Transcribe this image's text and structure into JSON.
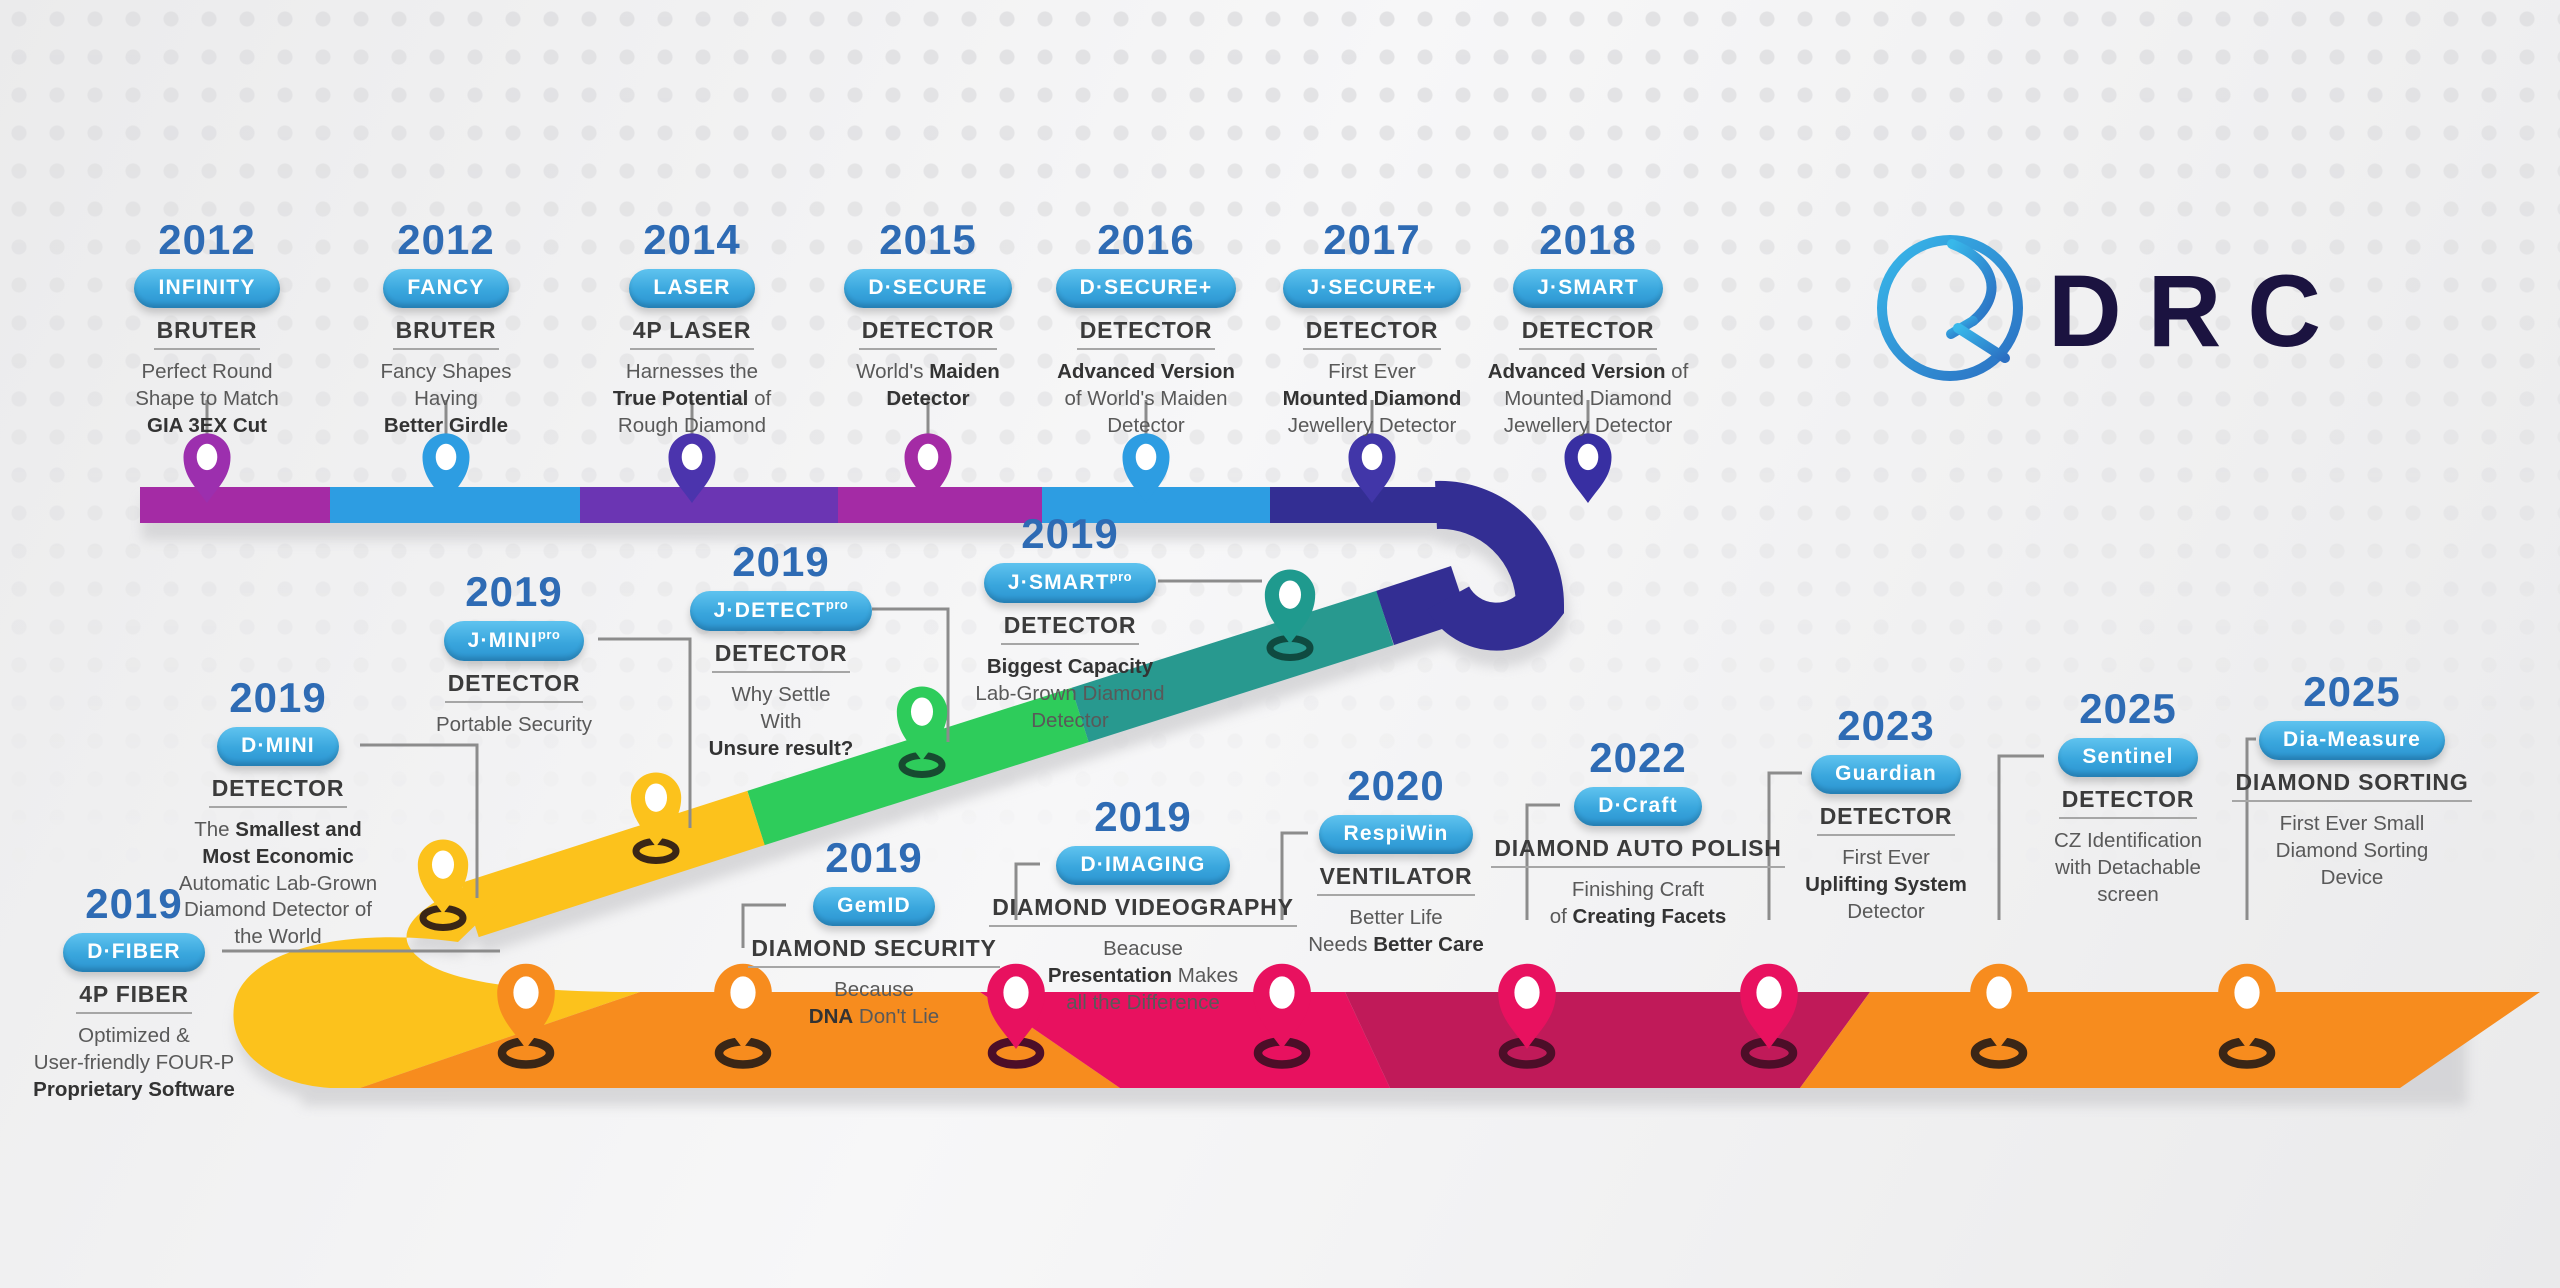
{
  "logo": {
    "text": "DRC"
  },
  "colors": {
    "year_blue": "#2e6bb4",
    "magenta": "#a42ba5",
    "purple": "#9c2fae",
    "blue": "#2d9de2",
    "violet": "#6b35b3",
    "indigo": "#332e93",
    "indigo_pin": "#4136a8",
    "teal": "#28998f",
    "teal_pin": "#1f9a8e",
    "green": "#2ecc5b",
    "yellow": "#fcc21c",
    "orange": "#f78c1e",
    "pink": "#e8115f",
    "crimson": "#c01a59",
    "ring_brown": "#3a2616",
    "ring_maroon": "#4c0e28",
    "connector_gray": "#8c8c8c",
    "logo_navy": "#1b1340"
  },
  "entries": [
    {
      "year": "2012",
      "pill": "INFINITY",
      "pill_sup": "",
      "sublabel": "BRUTER",
      "desc": [
        [
          [
            "Perfect Round",
            false
          ]
        ],
        [
          [
            "Shape to Match",
            false
          ]
        ],
        [
          [
            "GIA 3EX Cut",
            true
          ]
        ]
      ]
    },
    {
      "year": "2012",
      "pill": "FANCY",
      "pill_sup": "",
      "sublabel": "BRUTER",
      "desc": [
        [
          [
            "Fancy Shapes",
            false
          ]
        ],
        [
          [
            "Having",
            false
          ]
        ],
        [
          [
            "Better Girdle",
            true
          ]
        ]
      ]
    },
    {
      "year": "2014",
      "pill": "LASER",
      "pill_sup": "",
      "sublabel": "4P LASER",
      "desc": [
        [
          [
            "Harnesses the",
            false
          ]
        ],
        [
          [
            "True Potential",
            true
          ],
          [
            " of",
            false
          ]
        ],
        [
          [
            "Rough Diamond",
            false
          ]
        ]
      ]
    },
    {
      "year": "2015",
      "pill": "D·SECURE",
      "pill_sup": "",
      "sublabel": "DETECTOR",
      "desc": [
        [
          [
            "World's ",
            false
          ],
          [
            "Maiden",
            true
          ]
        ],
        [
          [
            "Detector",
            true
          ]
        ]
      ]
    },
    {
      "year": "2016",
      "pill": "D·SECURE+",
      "pill_sup": "",
      "sublabel": "DETECTOR",
      "desc": [
        [
          [
            "Advanced Version",
            true
          ]
        ],
        [
          [
            "of World's Maiden",
            false
          ]
        ],
        [
          [
            "Detector",
            false
          ]
        ]
      ]
    },
    {
      "year": "2017",
      "pill": "J·SECURE+",
      "pill_sup": "",
      "sublabel": "DETECTOR",
      "desc": [
        [
          [
            "First Ever",
            false
          ]
        ],
        [
          [
            "Mounted Diamond",
            true
          ]
        ],
        [
          [
            "Jewellery Detector",
            false
          ]
        ]
      ]
    },
    {
      "year": "2018",
      "pill": "J·SMART",
      "pill_sup": "",
      "sublabel": "DETECTOR",
      "desc": [
        [
          [
            "Advanced Version",
            true
          ],
          [
            " of",
            false
          ]
        ],
        [
          [
            "Mounted Diamond",
            false
          ]
        ],
        [
          [
            "Jewellery Detector",
            false
          ]
        ]
      ]
    },
    {
      "year": "2019",
      "pill": "D·MINI",
      "pill_sup": "",
      "sublabel": "DETECTOR",
      "desc": [
        [
          [
            "The ",
            false
          ],
          [
            "Smallest and",
            true
          ]
        ],
        [
          [
            "Most Economic",
            true
          ]
        ],
        [
          [
            "Automatic Lab-Grown",
            false
          ]
        ],
        [
          [
            "Diamond Detector of",
            false
          ]
        ],
        [
          [
            "the World",
            false
          ]
        ]
      ]
    },
    {
      "year": "2019",
      "pill": "J·MINI",
      "pill_sup": "pro",
      "sublabel": "DETECTOR",
      "desc": [
        [
          [
            "Portable Security",
            false
          ]
        ]
      ]
    },
    {
      "year": "2019",
      "pill": "J·DETECT",
      "pill_sup": "pro",
      "sublabel": "DETECTOR",
      "desc": [
        [
          [
            "Why Settle",
            false
          ]
        ],
        [
          [
            "With",
            false
          ]
        ],
        [
          [
            "Unsure result?",
            true
          ]
        ]
      ]
    },
    {
      "year": "2019",
      "pill": "J·SMART",
      "pill_sup": "pro",
      "sublabel": "DETECTOR",
      "desc": [
        [
          [
            "Biggest Capacity",
            true
          ]
        ],
        [
          [
            "Lab-Grown Diamond",
            false
          ]
        ],
        [
          [
            "Detector",
            false
          ]
        ]
      ]
    },
    {
      "year": "2019",
      "pill": "D·FIBER",
      "pill_sup": "",
      "sublabel": "4P FIBER",
      "desc": [
        [
          [
            "Optimized &",
            false
          ]
        ],
        [
          [
            "User-friendly FOUR-P",
            false
          ]
        ],
        [
          [
            "Proprietary Software",
            true
          ]
        ]
      ]
    },
    {
      "year": "2019",
      "pill": "GemID",
      "pill_sup": "",
      "sublabel": "DIAMOND SECURITY",
      "desc": [
        [
          [
            "Because",
            false
          ]
        ],
        [
          [
            "DNA",
            true
          ],
          [
            " Don't Lie",
            false
          ]
        ]
      ]
    },
    {
      "year": "2019",
      "pill": "D·IMAGING",
      "pill_sup": "",
      "sublabel": "DIAMOND VIDEOGRAPHY",
      "desc": [
        [
          [
            "Beacuse",
            false
          ]
        ],
        [
          [
            "Presentation",
            true
          ],
          [
            " Makes",
            false
          ]
        ],
        [
          [
            "all the Difference",
            false
          ]
        ]
      ]
    },
    {
      "year": "2020",
      "pill": "RespiWin",
      "pill_sup": "",
      "sublabel": "VENTILATOR",
      "desc": [
        [
          [
            "Better Life",
            false
          ]
        ],
        [
          [
            "Needs ",
            false
          ],
          [
            "Better Care",
            true
          ]
        ]
      ]
    },
    {
      "year": "2022",
      "pill": "D·Craft",
      "pill_sup": "",
      "sublabel": "DIAMOND AUTO POLISH",
      "desc": [
        [
          [
            "Finishing Craft",
            false
          ]
        ],
        [
          [
            "of ",
            false
          ],
          [
            "Creating Facets",
            true
          ]
        ]
      ]
    },
    {
      "year": "2023",
      "pill": "Guardian",
      "pill_sup": "",
      "sublabel": "DETECTOR",
      "desc": [
        [
          [
            "First Ever",
            false
          ]
        ],
        [
          [
            "Uplifting System",
            true
          ]
        ],
        [
          [
            "Detector",
            false
          ]
        ]
      ]
    },
    {
      "year": "2025",
      "pill": "Sentinel",
      "pill_sup": "",
      "sublabel": "DETECTOR",
      "desc": [
        [
          [
            "CZ Identification",
            false
          ]
        ],
        [
          [
            "with Detachable",
            false
          ]
        ],
        [
          [
            "screen",
            false
          ]
        ]
      ]
    },
    {
      "year": "2025",
      "pill": "Dia-Measure",
      "pill_sup": "",
      "sublabel": "DIAMOND SORTING",
      "desc": [
        [
          [
            "First Ever Small",
            false
          ]
        ],
        [
          [
            "Diamond Sorting",
            false
          ]
        ],
        [
          [
            "Device",
            false
          ]
        ]
      ]
    }
  ]
}
